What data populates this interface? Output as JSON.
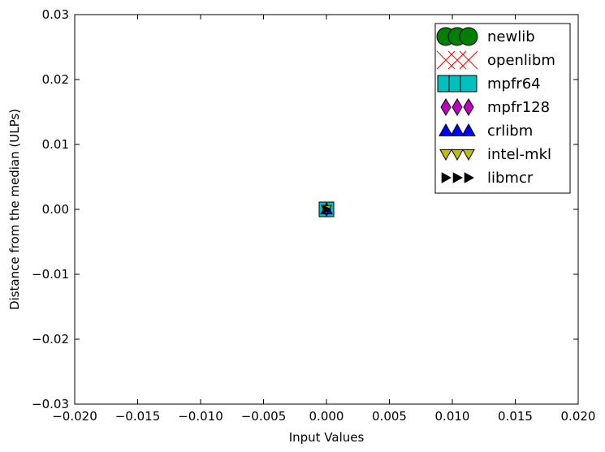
{
  "chart_data": {
    "type": "scatter",
    "title": "",
    "xlabel": "Input Values",
    "ylabel": "Distance from the median (ULPs)",
    "xlim": [
      -0.02,
      0.02
    ],
    "ylim": [
      -0.03,
      0.03
    ],
    "xticks": [
      -0.02,
      -0.015,
      -0.01,
      -0.005,
      0.0,
      0.005,
      0.01,
      0.015,
      0.02
    ],
    "xtick_labels": [
      "−0.020",
      "−0.015",
      "−0.010",
      "−0.005",
      "0.000",
      "0.005",
      "0.010",
      "0.015",
      "0.020"
    ],
    "yticks": [
      -0.03,
      -0.02,
      -0.01,
      0.0,
      0.01,
      0.02,
      0.03
    ],
    "ytick_labels": [
      "−0.03",
      "−0.02",
      "−0.01",
      "0.00",
      "0.01",
      "0.02",
      "0.03"
    ],
    "grid": false,
    "legend_position": "top-right",
    "series": [
      {
        "name": "newlib",
        "marker": "circle",
        "color": "#008000",
        "x": [
          0.0
        ],
        "y": [
          0.0
        ]
      },
      {
        "name": "openlibm",
        "marker": "x",
        "color": "#ff0000",
        "x": [
          0.0
        ],
        "y": [
          0.0
        ]
      },
      {
        "name": "mpfr64",
        "marker": "square",
        "color": "#00bfbf",
        "x": [
          0.0
        ],
        "y": [
          0.0
        ]
      },
      {
        "name": "mpfr128",
        "marker": "diamond",
        "color": "#bf00bf",
        "x": [
          0.0
        ],
        "y": [
          0.0
        ]
      },
      {
        "name": "crlibm",
        "marker": "triangle-up",
        "color": "#0000ff",
        "x": [
          0.0
        ],
        "y": [
          0.0
        ]
      },
      {
        "name": "intel-mkl",
        "marker": "triangle-down",
        "color": "#bfbf00",
        "x": [
          0.0
        ],
        "y": [
          0.0
        ]
      },
      {
        "name": "libmcr",
        "marker": "triangle-right",
        "color": "#000000",
        "x": [
          0.0
        ],
        "y": [
          0.0
        ]
      }
    ]
  }
}
